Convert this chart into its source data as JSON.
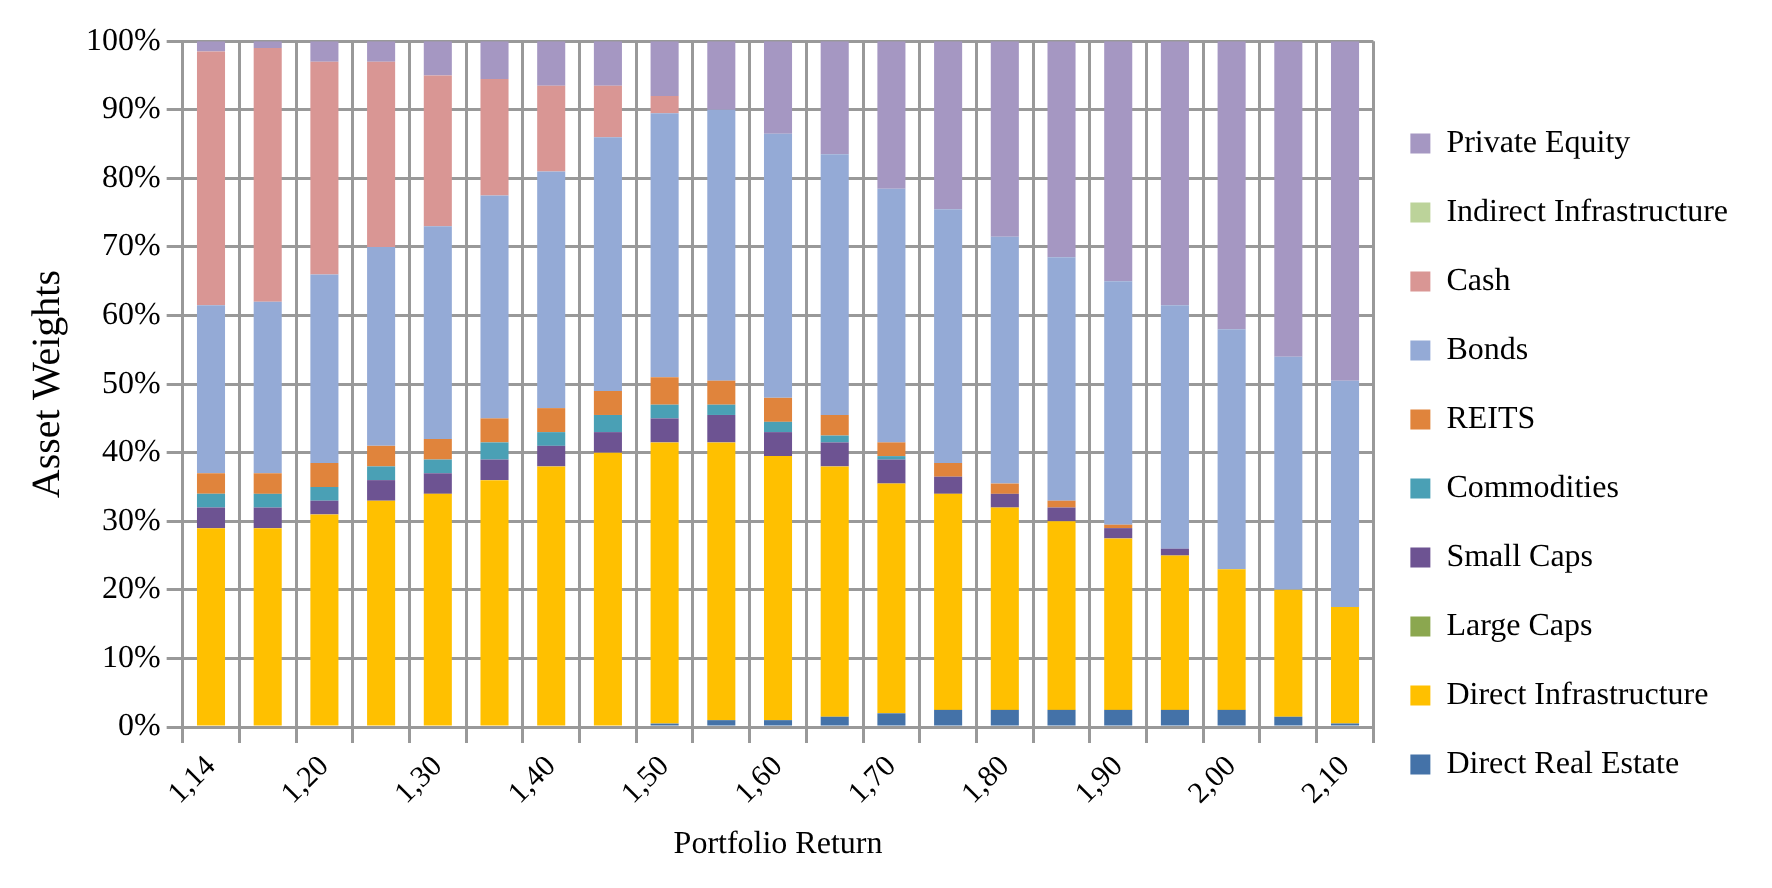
{
  "chart_data": {
    "type": "bar",
    "stacked": true,
    "xlabel": "Portfolio Return",
    "ylabel": "Asset Weights",
    "categories": [
      "1,14",
      null,
      "1,20",
      null,
      "1,30",
      null,
      "1,40",
      null,
      "1,50",
      null,
      "1,60",
      null,
      "1,70",
      null,
      "1,80",
      null,
      "1,90",
      null,
      "2,00",
      null,
      "2,10"
    ],
    "series": [
      {
        "name": "Direct Real Estate",
        "color": "#4472a8",
        "values": [
          0,
          0,
          0,
          0,
          0,
          0,
          0,
          0,
          0.5,
          1,
          1,
          1.5,
          2,
          2.5,
          2.5,
          2.5,
          2.5,
          2.5,
          2.5,
          1.5,
          0.5
        ]
      },
      {
        "name": "Direct Infrastructure",
        "color": "#ffc000",
        "values": [
          29,
          29,
          31,
          33,
          34,
          36,
          38,
          40,
          41,
          40.5,
          38.5,
          36.5,
          33.5,
          31.5,
          29.5,
          27.5,
          25,
          22.5,
          20.5,
          18.5,
          17
        ]
      },
      {
        "name": "Large Caps",
        "color": "#8ba74f",
        "values": [
          0,
          0,
          0,
          0,
          0,
          0,
          0,
          0,
          0,
          0,
          0,
          0,
          0,
          0,
          0,
          0,
          0,
          0,
          0,
          0,
          0
        ]
      },
      {
        "name": "Small Caps",
        "color": "#6d5392",
        "values": [
          3,
          3,
          2,
          3,
          3,
          3,
          3,
          3,
          3.5,
          4,
          3.5,
          3.5,
          3.5,
          2.5,
          2,
          2,
          1.5,
          1,
          0,
          0,
          0
        ]
      },
      {
        "name": "Commodities",
        "color": "#4aa0b5",
        "values": [
          2,
          2,
          2,
          2,
          2,
          2.5,
          2,
          2.5,
          2,
          1.5,
          1.5,
          1,
          0.5,
          0,
          0,
          0,
          0,
          0,
          0,
          0,
          0
        ]
      },
      {
        "name": "REITS",
        "color": "#e0843c",
        "values": [
          3,
          3,
          3.5,
          3,
          3,
          3.5,
          3.5,
          3.5,
          4,
          3.5,
          3.5,
          3,
          2,
          2,
          1.5,
          1,
          0.5,
          0,
          0,
          0,
          0
        ]
      },
      {
        "name": "Bonds",
        "color": "#94aad6",
        "values": [
          24.5,
          25,
          27.5,
          29,
          31,
          32.5,
          34.5,
          37,
          38.5,
          39.5,
          38.5,
          38,
          37,
          37,
          36,
          35.5,
          35.5,
          35.5,
          35,
          34,
          33
        ]
      },
      {
        "name": "Cash",
        "color": "#d99694",
        "values": [
          37,
          37,
          31,
          27,
          22,
          17,
          12.5,
          7.5,
          2.5,
          0,
          0,
          0,
          0,
          0,
          0,
          0,
          0,
          0,
          0,
          0,
          0
        ]
      },
      {
        "name": "Indirect Infrastructure",
        "color": "#bcd39a",
        "values": [
          0,
          0,
          0,
          0,
          0,
          0,
          0,
          0,
          0,
          0,
          0,
          0,
          0,
          0,
          0,
          0,
          0,
          0,
          0,
          0,
          0
        ]
      },
      {
        "name": "Private Equity",
        "color": "#a597c2",
        "values": [
          1.5,
          1,
          3,
          3,
          5,
          5.5,
          6.5,
          6.5,
          8,
          10,
          13.5,
          16.5,
          21.5,
          24.5,
          28.5,
          31.5,
          35,
          38.5,
          42,
          46,
          49.5
        ]
      }
    ],
    "ylim": [
      0,
      100
    ],
    "yticks": [
      {
        "value": 0,
        "label": "0%"
      },
      {
        "value": 10,
        "label": "10%"
      },
      {
        "value": 20,
        "label": "20%"
      },
      {
        "value": 30,
        "label": "30%"
      },
      {
        "value": 40,
        "label": "40%"
      },
      {
        "value": 50,
        "label": "50%"
      },
      {
        "value": 60,
        "label": "60%"
      },
      {
        "value": 70,
        "label": "70%"
      },
      {
        "value": 80,
        "label": "80%"
      },
      {
        "value": 90,
        "label": "90%"
      },
      {
        "value": 100,
        "label": "100%"
      }
    ],
    "grid": true,
    "legend": "right"
  }
}
